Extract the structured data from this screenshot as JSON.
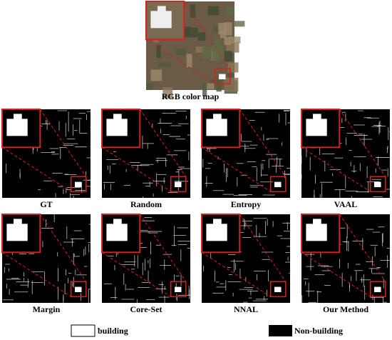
{
  "figure": {
    "top": {
      "caption": "RGB color map"
    },
    "panels": [
      {
        "caption": "GT"
      },
      {
        "caption": "Random"
      },
      {
        "caption": "Entropy"
      },
      {
        "caption": "VAAL"
      },
      {
        "caption": "Margin"
      },
      {
        "caption": "Core-Set"
      },
      {
        "caption": "NNAL"
      },
      {
        "caption": "Our Method"
      }
    ],
    "legend": [
      {
        "label": "building"
      },
      {
        "label": "Non-building"
      }
    ]
  }
}
